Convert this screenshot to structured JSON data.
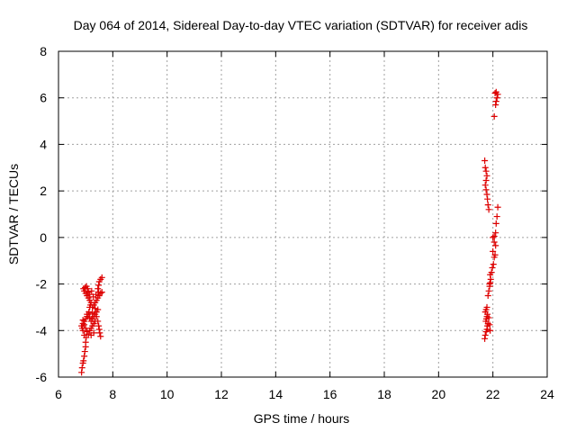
{
  "chart_data": {
    "type": "scatter",
    "title": "Day 064 of 2014, Sidereal Day-to-day VTEC variation (SDTVAR) for receiver adis",
    "xlabel": "GPS time / hours",
    "ylabel": "SDTVAR / TECUs",
    "xlim": [
      6,
      24
    ],
    "ylim": [
      -6,
      8
    ],
    "xticks": [
      6,
      8,
      10,
      12,
      14,
      16,
      18,
      20,
      22,
      24
    ],
    "yticks": [
      -6,
      -4,
      -2,
      0,
      2,
      4,
      6,
      8
    ],
    "xtick_labels": [
      "6",
      "8",
      "10",
      "12",
      "14",
      "16",
      "18",
      "20",
      "22",
      "24"
    ],
    "ytick_labels": [
      "-6",
      "-4",
      "-2",
      "0",
      "2",
      "4",
      "6",
      "8"
    ],
    "grid": true,
    "marker": "+",
    "marker_color": "#dd0000",
    "series": [
      {
        "points": [
          [
            6.85,
            -5.8
          ],
          [
            6.87,
            -5.6
          ],
          [
            6.9,
            -5.4
          ],
          [
            6.92,
            -5.3
          ],
          [
            6.95,
            -5.1
          ],
          [
            6.97,
            -4.9
          ],
          [
            7.0,
            -4.7
          ],
          [
            7.0,
            -4.5
          ],
          [
            7.02,
            -4.3
          ],
          [
            6.95,
            -4.2
          ],
          [
            6.9,
            -4.0
          ],
          [
            6.88,
            -3.9
          ],
          [
            6.85,
            -3.8
          ],
          [
            6.9,
            -3.7
          ],
          [
            6.95,
            -3.6
          ],
          [
            7.0,
            -3.5
          ],
          [
            7.05,
            -3.4
          ],
          [
            7.1,
            -3.3
          ],
          [
            7.12,
            -3.2
          ],
          [
            7.15,
            -3.0
          ],
          [
            7.18,
            -2.9
          ],
          [
            7.2,
            -2.8
          ],
          [
            7.15,
            -2.7
          ],
          [
            7.1,
            -2.6
          ],
          [
            7.05,
            -2.5
          ],
          [
            7.0,
            -2.4
          ],
          [
            6.95,
            -2.3
          ],
          [
            6.92,
            -2.2
          ],
          [
            6.98,
            -2.15
          ],
          [
            7.03,
            -2.1
          ],
          [
            7.07,
            -2.2
          ],
          [
            7.1,
            -2.35
          ],
          [
            6.9,
            -3.55
          ],
          [
            6.95,
            -3.75
          ],
          [
            7.0,
            -3.9
          ],
          [
            7.05,
            -4.05
          ],
          [
            7.1,
            -4.15
          ],
          [
            7.15,
            -4.0
          ],
          [
            7.2,
            -3.9
          ],
          [
            7.25,
            -3.8
          ],
          [
            7.3,
            -3.7
          ],
          [
            7.35,
            -3.6
          ],
          [
            7.2,
            -3.6
          ],
          [
            7.25,
            -3.5
          ],
          [
            7.3,
            -3.4
          ],
          [
            7.35,
            -3.3
          ],
          [
            7.4,
            -3.2
          ],
          [
            7.45,
            -3.1
          ],
          [
            7.25,
            -3.0
          ],
          [
            7.3,
            -2.9
          ],
          [
            7.35,
            -2.8
          ],
          [
            7.4,
            -2.7
          ],
          [
            7.45,
            -2.6
          ],
          [
            7.5,
            -2.5
          ],
          [
            7.55,
            -2.4
          ],
          [
            7.6,
            -2.35
          ],
          [
            7.45,
            -2.2
          ],
          [
            7.48,
            -2.05
          ],
          [
            7.5,
            -1.9
          ],
          [
            7.55,
            -1.8
          ],
          [
            7.6,
            -1.72
          ],
          [
            7.4,
            -3.4
          ],
          [
            7.45,
            -3.6
          ],
          [
            7.48,
            -3.8
          ],
          [
            7.5,
            -3.95
          ],
          [
            7.52,
            -4.1
          ],
          [
            7.55,
            -4.25
          ],
          [
            7.3,
            -4.1
          ],
          [
            7.2,
            -4.2
          ],
          [
            7.05,
            -3.3
          ],
          [
            7.15,
            -3.45
          ],
          [
            7.25,
            -3.25
          ],
          [
            7.35,
            -3.05
          ],
          [
            7.28,
            -2.55
          ],
          [
            7.38,
            -2.45
          ],
          [
            7.48,
            -2.35
          ],
          [
            7.15,
            -2.45
          ],
          [
            7.22,
            -2.3
          ]
        ]
      },
      {
        "points": [
          [
            21.7,
            -4.35
          ],
          [
            21.72,
            -4.2
          ],
          [
            21.75,
            -4.05
          ],
          [
            21.78,
            -3.95
          ],
          [
            21.8,
            -3.8
          ],
          [
            21.82,
            -3.7
          ],
          [
            21.74,
            -3.6
          ],
          [
            21.76,
            -3.5
          ],
          [
            21.78,
            -3.4
          ],
          [
            21.8,
            -3.3
          ],
          [
            21.72,
            -3.2
          ],
          [
            21.75,
            -3.1
          ],
          [
            21.78,
            -3.0
          ],
          [
            21.85,
            -3.45
          ],
          [
            21.88,
            -3.75
          ],
          [
            21.9,
            -4.0
          ],
          [
            21.82,
            -2.5
          ],
          [
            21.85,
            -2.3
          ],
          [
            21.88,
            -2.1
          ],
          [
            21.9,
            -1.95
          ],
          [
            21.92,
            -1.8
          ],
          [
            21.95,
            -1.5
          ],
          [
            21.98,
            -1.3
          ],
          [
            22.02,
            -1.15
          ],
          [
            22.05,
            -0.85
          ],
          [
            22.08,
            -0.75
          ],
          [
            22.1,
            -0.35
          ],
          [
            22.05,
            -0.2
          ],
          [
            22.0,
            0.0
          ],
          [
            22.05,
            0.05
          ],
          [
            22.1,
            0.2
          ],
          [
            22.12,
            0.6
          ],
          [
            22.15,
            0.9
          ],
          [
            22.18,
            1.3
          ],
          [
            21.85,
            1.2
          ],
          [
            21.82,
            1.4
          ],
          [
            21.8,
            1.65
          ],
          [
            21.78,
            1.85
          ],
          [
            21.75,
            2.05
          ],
          [
            21.72,
            2.25
          ],
          [
            21.75,
            2.45
          ],
          [
            21.78,
            2.65
          ],
          [
            21.75,
            2.85
          ],
          [
            21.72,
            3.0
          ],
          [
            21.7,
            3.3
          ],
          [
            22.05,
            5.2
          ],
          [
            22.1,
            5.7
          ],
          [
            22.12,
            5.85
          ],
          [
            22.15,
            6.0
          ],
          [
            22.18,
            6.15
          ],
          [
            22.12,
            6.25
          ],
          [
            22.08,
            6.2
          ],
          [
            21.9,
            -1.6
          ],
          [
            21.88,
            -2.0
          ],
          [
            22.0,
            -0.6
          ]
        ]
      }
    ]
  }
}
